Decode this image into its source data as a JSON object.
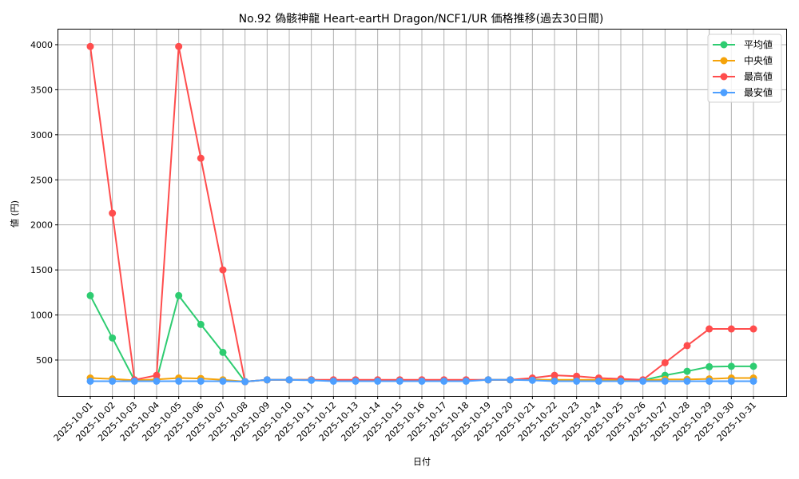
{
  "chart_data": {
    "type": "line",
    "title": "No.92 偽骸神龍 Heart-eartH Dragon/NCF1/UR 価格推移(過去30日間)",
    "xlabel": "日付",
    "ylabel": "値 (円)",
    "ylim": [
      0,
      4150
    ],
    "yticks": [
      500,
      1000,
      1500,
      2000,
      2500,
      3000,
      3500,
      4000
    ],
    "grid": true,
    "legend_position": "upper right",
    "x": [
      "2025-10-01",
      "2025-10-02",
      "2025-10-03",
      "2025-10-04",
      "2025-10-05",
      "2025-10-06",
      "2025-10-07",
      "2025-10-08",
      "2025-10-09",
      "2025-10-10",
      "2025-10-11",
      "2025-10-12",
      "2025-10-13",
      "2025-10-14",
      "2025-10-15",
      "2025-10-16",
      "2025-10-17",
      "2025-10-18",
      "2025-10-19",
      "2025-10-20",
      "2025-10-21",
      "2025-10-22",
      "2025-10-23",
      "2025-10-24",
      "2025-10-25",
      "2025-10-26",
      "2025-10-27",
      "2025-10-28",
      "2025-10-29",
      "2025-10-30",
      "2025-10-31"
    ],
    "series": [
      {
        "name": "平均値",
        "color": "#2ecc71",
        "values": [
          1215,
          745,
          275,
          280,
          1215,
          895,
          585,
          260,
          280,
          280,
          280,
          275,
          275,
          275,
          275,
          275,
          275,
          275,
          280,
          280,
          285,
          275,
          275,
          275,
          275,
          275,
          330,
          375,
          425,
          430,
          430
        ]
      },
      {
        "name": "中央値",
        "color": "#f5a30a",
        "values": [
          300,
          290,
          275,
          285,
          300,
          295,
          280,
          260,
          280,
          280,
          280,
          275,
          275,
          275,
          275,
          275,
          275,
          275,
          280,
          280,
          280,
          280,
          280,
          280,
          280,
          275,
          285,
          285,
          290,
          300,
          300
        ]
      },
      {
        "name": "最高値",
        "color": "#ff4d4d",
        "values": [
          3980,
          2130,
          280,
          330,
          3980,
          2740,
          1500,
          260,
          280,
          280,
          280,
          280,
          280,
          280,
          280,
          280,
          280,
          280,
          280,
          280,
          300,
          330,
          320,
          300,
          290,
          280,
          470,
          660,
          845,
          845,
          845
        ]
      },
      {
        "name": "最安値",
        "color": "#4d9fff",
        "values": [
          265,
          265,
          265,
          265,
          265,
          265,
          265,
          260,
          280,
          280,
          275,
          265,
          265,
          265,
          265,
          265,
          265,
          265,
          280,
          280,
          275,
          265,
          265,
          265,
          265,
          265,
          265,
          265,
          265,
          265,
          265
        ]
      }
    ]
  }
}
